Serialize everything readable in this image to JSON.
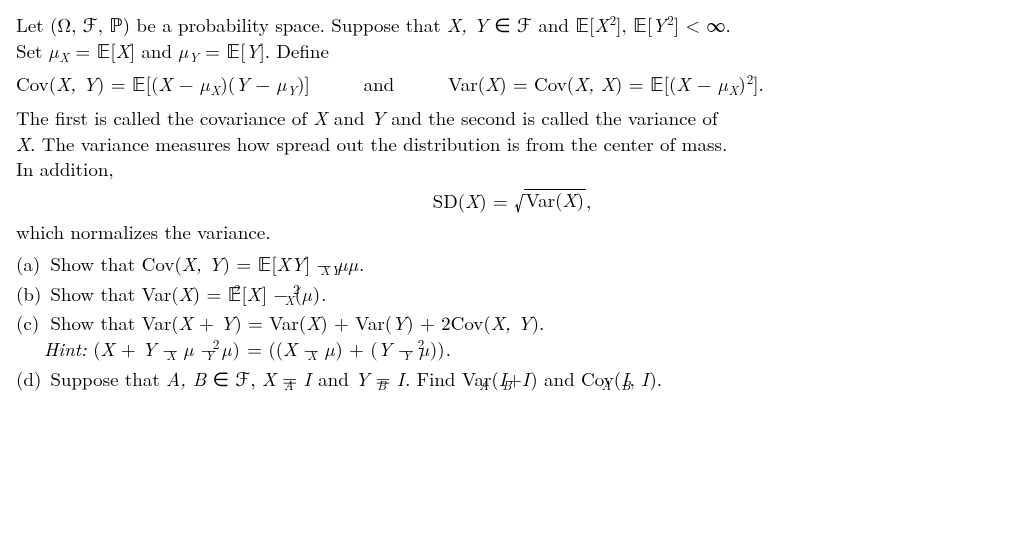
{
  "para1_a": "Let (Ω, ℱ, ℙ) be a probability space. Suppose that ",
  "para1_b": " and 𝔼[",
  "para1_c": "], 𝔼[",
  "para1_d": "] < ∞.",
  "para1_line2_a": "Set ",
  "para1_line2_b": " = 𝔼[",
  "para1_line2_c": "] and ",
  "para1_line2_d": " = 𝔼[",
  "para1_line2_e": "]. Define",
  "eq1_a": "Cov(",
  "eq1_b": ") = 𝔼[(",
  "eq1_c": " − ",
  "eq1_d": ")(",
  "eq1_e": ")]",
  "eq1_and": "and",
  "eq1_f": "Var(",
  "eq1_g": ") = Cov(",
  "eq1_h": ") = 𝔼[(",
  "eq1_i": "].",
  "para2_a": "The first is called the covariance of ",
  "para2_b": " and ",
  "para2_c": " and the second is called the variance of",
  "para2_line2": ". The variance measures how spread out the distribution is from the center of mass.",
  "para2_line3": "In addition,",
  "sd_a": "SD(",
  "sd_b": ") = ",
  "sd_inside": "Var(",
  "sd_close": "),",
  "para3": "which normalizes the variance.",
  "item_a_label": "(a)",
  "item_a_text": " Show that Cov(",
  "item_a_mid": ") = 𝔼[",
  "item_a_end": "] − ",
  "item_b_label": "(b)",
  "item_b_text": " Show that Var(",
  "item_b_mid": ") = 𝔼[",
  "item_b_end": "] − (",
  "item_c_label": "(c)",
  "item_c_text": " Show that Var(",
  "item_c_mid": ") = Var(",
  "item_c_mid2": ") + Var(",
  "item_c_mid3": ") + 2Cov(",
  "item_c_end": ").",
  "item_c_hint": "Hint:",
  "item_c_hint_a": " (",
  "item_c_hint_b": " = ((",
  "item_c_hint_c": ") + (",
  "item_c_hint_d": "))",
  "item_d_label": "(d)",
  "item_d_text": " Suppose that ",
  "item_d_mid": " ∈ ℱ, ",
  "item_d_mid2": " = ",
  "item_d_mid3": " and ",
  "item_d_mid4": ". Find Var(",
  "item_d_mid5": ") and Cov(",
  "item_d_end": ").",
  "X": "X",
  "Y": "Y",
  "XY": "X, Y",
  "XX": "X, X",
  "mu": "µ",
  "I": "I",
  "A": "A",
  "B": "B",
  "AB": "A, B",
  "plus": " + ",
  "minus": " − ",
  "comma_sp": ", ",
  "period": "."
}
